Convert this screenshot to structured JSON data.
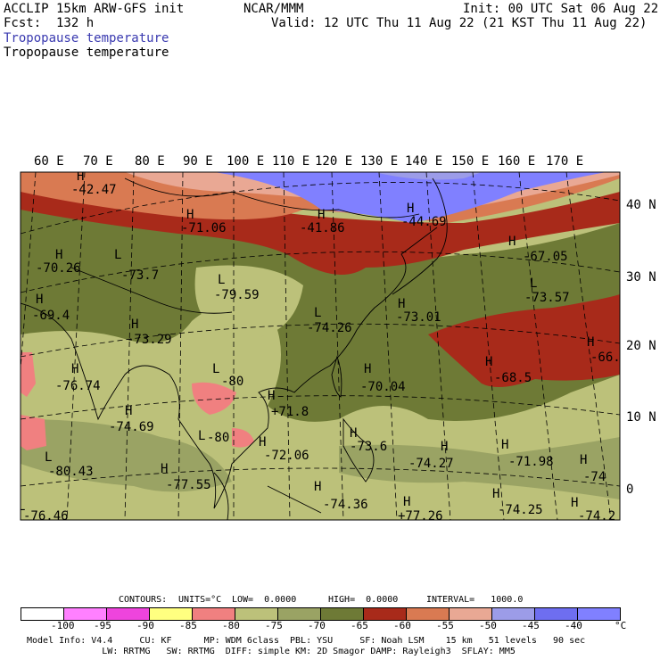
{
  "header": {
    "model": "ACCLIP 15km ARW-GFS init",
    "org": "NCAR/MMM",
    "init": "Init: 00 UTC Sat 06 Aug 22",
    "fcst": "Fcst:  132 h",
    "valid": "Valid: 12 UTC Thu 11 Aug 22 (21 KST Thu 11 Aug 22)",
    "field_title_1": "Tropopause temperature",
    "field_title_2": "Tropopause temperature"
  },
  "map": {
    "lon_labels": [
      "60 E",
      "70 E",
      "80 E",
      "90 E",
      "100 E",
      "110 E",
      "120 E",
      "130 E",
      "140 E",
      "150 E",
      "160 E",
      "170 E"
    ],
    "lat_labels": [
      "40 N",
      "30 N",
      "20 N",
      "10 N",
      "0"
    ],
    "extrema": [
      {
        "mark": "H",
        "value": "-42.47"
      },
      {
        "mark": "H",
        "value": "-71.06"
      },
      {
        "mark": "H",
        "value": "-41.86"
      },
      {
        "mark": "H",
        "value": "-44.69"
      },
      {
        "mark": "H",
        "value": "-67.05"
      },
      {
        "mark": "H",
        "value": "-70.26"
      },
      {
        "mark": "L",
        "value": "-73.7"
      },
      {
        "mark": "L",
        "value": "-79.59"
      },
      {
        "mark": "L",
        "value": "-73.57"
      },
      {
        "mark": "H",
        "value": "-69.4"
      },
      {
        "mark": "L",
        "value": "-74.26"
      },
      {
        "mark": "H",
        "value": "-73.01"
      },
      {
        "mark": "H",
        "value": "-73.29"
      },
      {
        "mark": "H",
        "value": "-66."
      },
      {
        "mark": "H",
        "value": "-76.74"
      },
      {
        "mark": "L",
        "value": "-80"
      },
      {
        "mark": "H",
        "value": "-70.04"
      },
      {
        "mark": "H",
        "value": "-68.5"
      },
      {
        "mark": "H",
        "value": "+71.8"
      },
      {
        "mark": "H",
        "value": "-74.69"
      },
      {
        "mark": "L",
        "value": "-80"
      },
      {
        "mark": "H",
        "value": "-73.6"
      },
      {
        "mark": "L",
        "value": "-80.43"
      },
      {
        "mark": "H",
        "value": "-72.06"
      },
      {
        "mark": "H",
        "value": "-74.27"
      },
      {
        "mark": "H",
        "value": "-71.98"
      },
      {
        "mark": "H",
        "value": "-74"
      },
      {
        "mark": "H",
        "value": "-77.55"
      },
      {
        "mark": "H",
        "value": "-74.36"
      },
      {
        "mark": "H",
        "value": "+77.26"
      },
      {
        "mark": "H",
        "value": "-74.25"
      },
      {
        "mark": "L",
        "value": "-76.46"
      },
      {
        "mark": "H",
        "value": "-74.2"
      }
    ]
  },
  "contours": {
    "label": "CONTOURS:",
    "units": "UNITS=°C",
    "low": "LOW=  0.0000",
    "high": "HIGH=  0.0000",
    "interval": "INTERVAL=   1000.0"
  },
  "colorbar": {
    "colors": [
      "#ffffff",
      "#ff80ff",
      "#ee44dd",
      "#ffff80",
      "#f08080",
      "#bcc17a",
      "#9aa364",
      "#6e7a36",
      "#a82a1a",
      "#d97a52",
      "#e9a894",
      "#9c9ce8",
      "#6e6ef0",
      "#8080ff"
    ],
    "labels": [
      "-100",
      "-95",
      "-90",
      "-85",
      "-80",
      "-75",
      "-70",
      "-65",
      "-60",
      "-55",
      "-50",
      "-45",
      "-40"
    ],
    "unit": "°C"
  },
  "footer": {
    "line1": "Model Info: V4.4     CU: KF      MP: WDM 6class  PBL: YSU     SF: Noah LSM    15 km   51 levels   90 sec",
    "line2": "              LW: RRTMG   SW: RRTMG  DIFF: simple KM: 2D Smagor DAMP: Rayleigh3  SFLAY: MM5"
  }
}
